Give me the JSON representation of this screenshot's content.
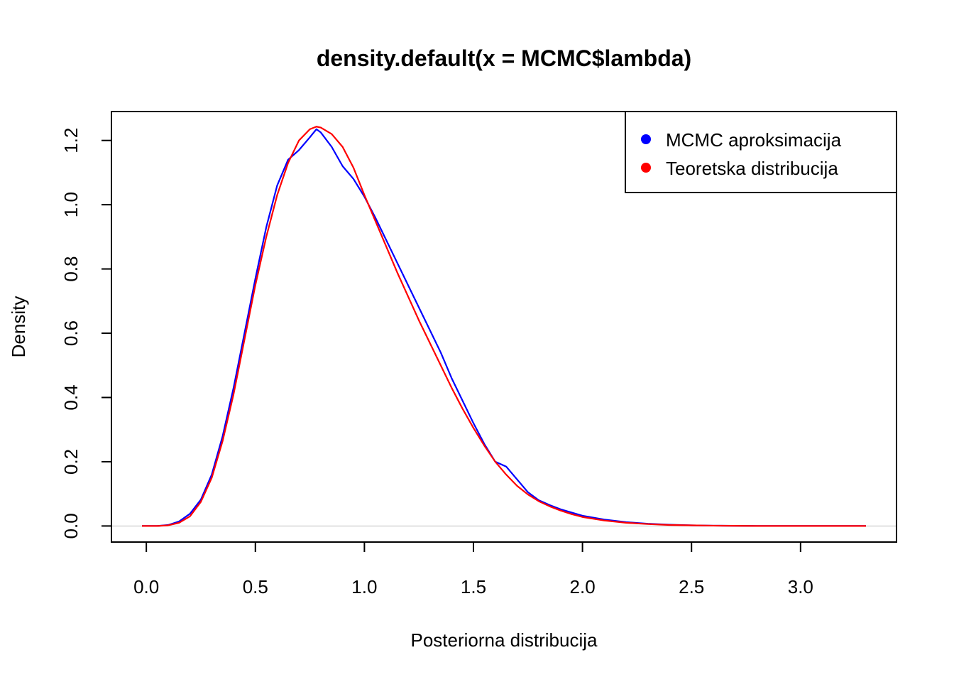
{
  "chart_data": {
    "type": "line",
    "title": "density.default(x = MCMC$lambda)",
    "xlabel": "Posteriorna distribucija",
    "ylabel": "Density",
    "xlim": [
      -0.16,
      3.44
    ],
    "ylim": [
      -0.05,
      1.29
    ],
    "xticks": [
      {
        "value": 0.0,
        "label": "0.0"
      },
      {
        "value": 0.5,
        "label": "0.5"
      },
      {
        "value": 1.0,
        "label": "1.0"
      },
      {
        "value": 1.5,
        "label": "1.5"
      },
      {
        "value": 2.0,
        "label": "2.0"
      },
      {
        "value": 2.5,
        "label": "2.5"
      },
      {
        "value": 3.0,
        "label": "3.0"
      }
    ],
    "yticks": [
      {
        "value": 0.0,
        "label": "0.0"
      },
      {
        "value": 0.2,
        "label": "0.2"
      },
      {
        "value": 0.4,
        "label": "0.4"
      },
      {
        "value": 0.6,
        "label": "0.6"
      },
      {
        "value": 0.8,
        "label": "0.8"
      },
      {
        "value": 1.0,
        "label": "1.0"
      },
      {
        "value": 1.2,
        "label": "1.2"
      }
    ],
    "zero_line": {
      "y": 0,
      "color": "#bebebe"
    },
    "grid": false,
    "legend": {
      "placement": "top-right",
      "entries": [
        {
          "label": "MCMC aproksimacija",
          "color": "#0000ff"
        },
        {
          "label": "Teoretska distribucija",
          "color": "#ff0000"
        }
      ]
    },
    "series": [
      {
        "color": "#0000ff",
        "points": [
          [
            -0.02,
            0.0
          ],
          [
            0.05,
            0.0
          ],
          [
            0.1,
            0.003
          ],
          [
            0.15,
            0.014
          ],
          [
            0.2,
            0.038
          ],
          [
            0.25,
            0.082
          ],
          [
            0.3,
            0.16
          ],
          [
            0.35,
            0.28
          ],
          [
            0.4,
            0.43
          ],
          [
            0.45,
            0.6
          ],
          [
            0.5,
            0.77
          ],
          [
            0.55,
            0.93
          ],
          [
            0.6,
            1.06
          ],
          [
            0.65,
            1.14
          ],
          [
            0.7,
            1.17
          ],
          [
            0.75,
            1.21
          ],
          [
            0.78,
            1.235
          ],
          [
            0.8,
            1.225
          ],
          [
            0.85,
            1.18
          ],
          [
            0.9,
            1.12
          ],
          [
            0.95,
            1.08
          ],
          [
            1.0,
            1.025
          ],
          [
            1.05,
            0.96
          ],
          [
            1.1,
            0.89
          ],
          [
            1.15,
            0.82
          ],
          [
            1.2,
            0.75
          ],
          [
            1.25,
            0.68
          ],
          [
            1.3,
            0.61
          ],
          [
            1.35,
            0.54
          ],
          [
            1.4,
            0.46
          ],
          [
            1.45,
            0.39
          ],
          [
            1.5,
            0.32
          ],
          [
            1.55,
            0.255
          ],
          [
            1.6,
            0.2
          ],
          [
            1.65,
            0.185
          ],
          [
            1.7,
            0.145
          ],
          [
            1.75,
            0.105
          ],
          [
            1.8,
            0.08
          ],
          [
            1.85,
            0.065
          ],
          [
            1.9,
            0.052
          ],
          [
            1.95,
            0.042
          ],
          [
            2.0,
            0.032
          ],
          [
            2.1,
            0.02
          ],
          [
            2.2,
            0.012
          ],
          [
            2.3,
            0.007
          ],
          [
            2.4,
            0.004
          ],
          [
            2.5,
            0.002
          ],
          [
            2.6,
            0.001
          ],
          [
            2.8,
            0.0
          ],
          [
            3.0,
            0.0
          ],
          [
            3.3,
            0.0
          ]
        ]
      },
      {
        "color": "#ff0000",
        "points": [
          [
            -0.02,
            0.0
          ],
          [
            0.05,
            0.0
          ],
          [
            0.1,
            0.002
          ],
          [
            0.15,
            0.01
          ],
          [
            0.2,
            0.03
          ],
          [
            0.25,
            0.075
          ],
          [
            0.3,
            0.15
          ],
          [
            0.35,
            0.265
          ],
          [
            0.4,
            0.41
          ],
          [
            0.45,
            0.58
          ],
          [
            0.5,
            0.75
          ],
          [
            0.55,
            0.9
          ],
          [
            0.6,
            1.03
          ],
          [
            0.65,
            1.13
          ],
          [
            0.7,
            1.2
          ],
          [
            0.75,
            1.235
          ],
          [
            0.78,
            1.243
          ],
          [
            0.8,
            1.24
          ],
          [
            0.85,
            1.22
          ],
          [
            0.9,
            1.18
          ],
          [
            0.95,
            1.115
          ],
          [
            1.0,
            1.03
          ],
          [
            1.05,
            0.95
          ],
          [
            1.1,
            0.87
          ],
          [
            1.15,
            0.79
          ],
          [
            1.2,
            0.715
          ],
          [
            1.25,
            0.64
          ],
          [
            1.3,
            0.57
          ],
          [
            1.35,
            0.5
          ],
          [
            1.4,
            0.43
          ],
          [
            1.45,
            0.365
          ],
          [
            1.5,
            0.305
          ],
          [
            1.55,
            0.25
          ],
          [
            1.6,
            0.2
          ],
          [
            1.65,
            0.16
          ],
          [
            1.7,
            0.125
          ],
          [
            1.75,
            0.098
          ],
          [
            1.8,
            0.077
          ],
          [
            1.85,
            0.061
          ],
          [
            1.9,
            0.048
          ],
          [
            1.95,
            0.037
          ],
          [
            2.0,
            0.028
          ],
          [
            2.1,
            0.017
          ],
          [
            2.2,
            0.01
          ],
          [
            2.3,
            0.006
          ],
          [
            2.4,
            0.003
          ],
          [
            2.5,
            0.002
          ],
          [
            2.6,
            0.001
          ],
          [
            2.8,
            0.0
          ],
          [
            3.0,
            0.0
          ],
          [
            3.3,
            0.0
          ]
        ]
      }
    ]
  }
}
